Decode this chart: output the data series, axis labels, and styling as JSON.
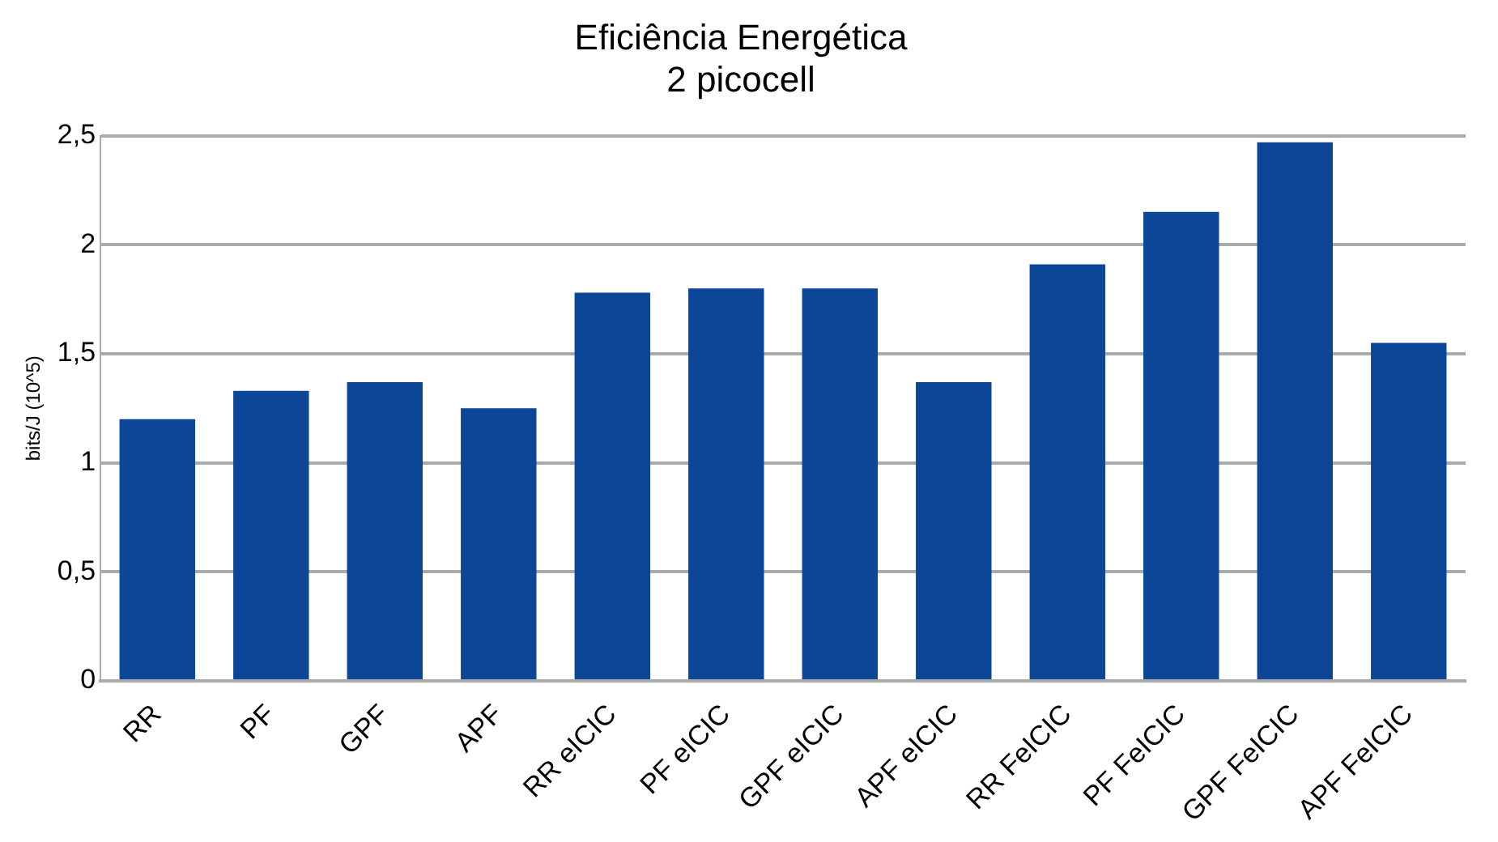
{
  "chart_data": {
    "type": "bar",
    "title": "Eficiência Energética",
    "subtitle": "2 picocell",
    "ylabel": "bits/J (10^5)",
    "categories": [
      "RR",
      "PF",
      "GPF",
      "APF",
      "RR eICIC",
      "PF eICIC",
      "GPF eICIC",
      "APF eICIC",
      "RR FeICIC",
      "PF FeICIC",
      "GPF FeICIC",
      "APF FeICIC"
    ],
    "values": [
      1.2,
      1.33,
      1.37,
      1.25,
      1.78,
      1.8,
      1.8,
      1.37,
      1.91,
      2.15,
      2.47,
      1.55
    ],
    "color": "#0b4796",
    "ylim": [
      0,
      2.5
    ],
    "yticks": [
      0,
      {
        "value": 0.5,
        "label": "0,5"
      },
      1,
      {
        "value": 1.5,
        "label": "1,5"
      },
      2,
      {
        "value": 2.5,
        "label": "2,5"
      }
    ],
    "grid": "y"
  }
}
